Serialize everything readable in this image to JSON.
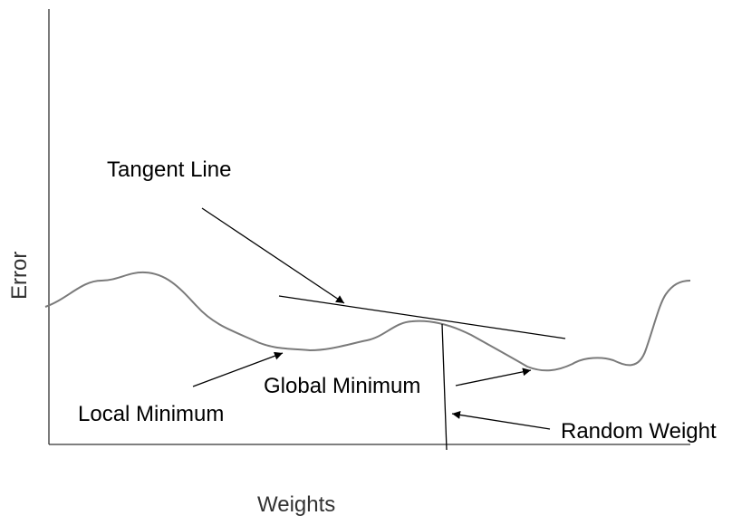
{
  "diagram": {
    "labels": {
      "tangent_line": "Tangent Line",
      "local_minimum": "Local Minimum",
      "global_minimum": "Global Minimum",
      "random_weight": "Random Weight"
    },
    "axes": {
      "x_title": "Weights",
      "y_title": "Error"
    },
    "colors": {
      "curve": "#7a7a7a",
      "lines": "#000000",
      "axis_title": "#333333"
    }
  }
}
